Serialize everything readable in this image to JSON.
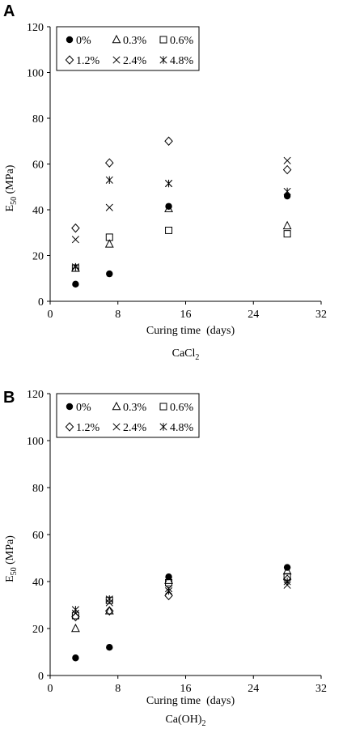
{
  "chart_data": [
    {
      "panel_label": "A",
      "type": "scatter",
      "xlabel": "Curing time  (days)",
      "ylabel": {
        "main": "E",
        "sub": "50",
        "rest": " (MPa)"
      },
      "caption": {
        "main": "CaCl",
        "sub": "2",
        "rest": ""
      },
      "xlim": [
        0,
        32
      ],
      "ylim": [
        0,
        120
      ],
      "xticks": [
        0,
        8,
        16,
        24,
        32
      ],
      "yticks": [
        0,
        20,
        40,
        60,
        80,
        100,
        120
      ],
      "grid": false,
      "legend_position": "top-left",
      "series": [
        {
          "name": "0%",
          "marker": "filled-circle",
          "x": [
            3,
            7,
            14,
            28
          ],
          "y": [
            7.5,
            12,
            41.5,
            46
          ]
        },
        {
          "name": "0.3%",
          "marker": "triangle",
          "x": [
            3,
            7,
            14,
            28
          ],
          "y": [
            14.5,
            25,
            40.5,
            33
          ]
        },
        {
          "name": "0.6%",
          "marker": "square",
          "x": [
            3,
            7,
            14,
            28
          ],
          "y": [
            14.5,
            28,
            31,
            29.5
          ]
        },
        {
          "name": "1.2%",
          "marker": "diamond",
          "x": [
            3,
            7,
            14,
            28
          ],
          "y": [
            32,
            60.5,
            70,
            57.5
          ]
        },
        {
          "name": "2.4%",
          "marker": "x-cross",
          "x": [
            3,
            7,
            14,
            28
          ],
          "y": [
            27,
            41,
            51.5,
            61.5
          ]
        },
        {
          "name": "4.8%",
          "marker": "asterisk",
          "x": [
            3,
            7,
            14,
            28
          ],
          "y": [
            15,
            53,
            51.5,
            48
          ]
        }
      ]
    },
    {
      "panel_label": "B",
      "type": "scatter",
      "xlabel": "Curing time  (days)",
      "ylabel": {
        "main": "E",
        "sub": "50",
        "rest": " (MPa)"
      },
      "caption": {
        "main": "Ca(OH)",
        "sub": "2",
        "rest": ""
      },
      "xlim": [
        0,
        32
      ],
      "ylim": [
        0,
        120
      ],
      "xticks": [
        0,
        8,
        16,
        24,
        32
      ],
      "yticks": [
        0,
        20,
        40,
        60,
        80,
        100,
        120
      ],
      "grid": false,
      "legend_position": "top-left",
      "series": [
        {
          "name": "0%",
          "marker": "filled-circle",
          "x": [
            3,
            7,
            14,
            28
          ],
          "y": [
            7.5,
            12,
            42,
            46
          ]
        },
        {
          "name": "0.3%",
          "marker": "triangle",
          "x": [
            3,
            7,
            14,
            28
          ],
          "y": [
            20,
            27.5,
            40.5,
            44.5
          ]
        },
        {
          "name": "0.6%",
          "marker": "square",
          "x": [
            3,
            7,
            14,
            28
          ],
          "y": [
            25.5,
            32,
            39.5,
            42
          ]
        },
        {
          "name": "1.2%",
          "marker": "diamond",
          "x": [
            3,
            7,
            14,
            28
          ],
          "y": [
            25,
            27.5,
            34,
            41
          ]
        },
        {
          "name": "2.4%",
          "marker": "x-cross",
          "x": [
            3,
            7,
            14,
            28
          ],
          "y": [
            26.5,
            31,
            37,
            38.5
          ]
        },
        {
          "name": "4.8%",
          "marker": "asterisk",
          "x": [
            3,
            7,
            14,
            28
          ],
          "y": [
            28,
            32.5,
            36,
            40
          ]
        }
      ]
    }
  ]
}
